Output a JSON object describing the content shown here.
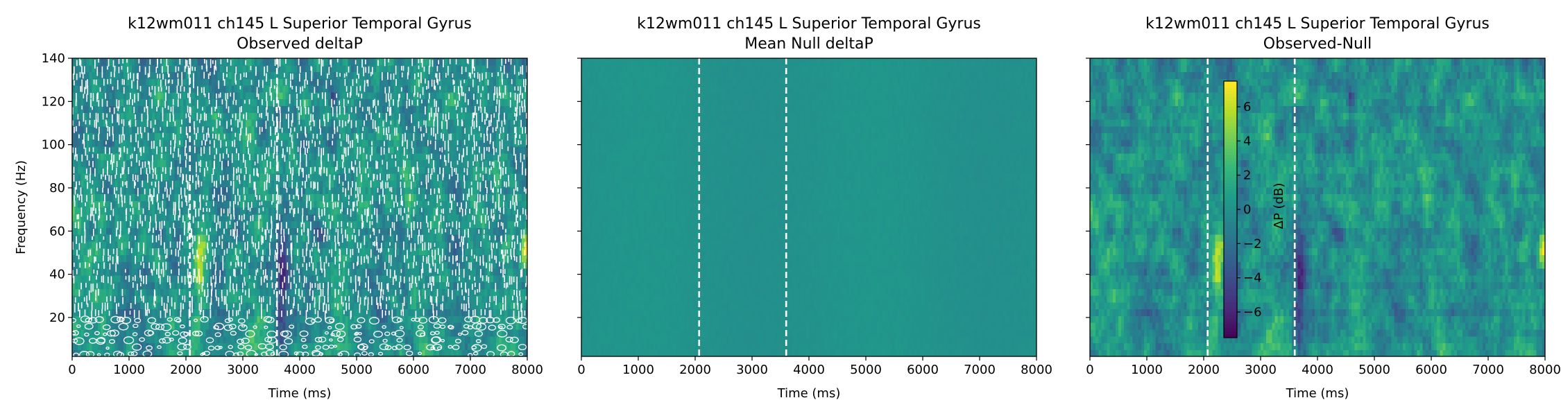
{
  "chart_data": [
    {
      "type": "heatmap",
      "title": "k12wm011 ch145 L Superior Temporal Gyrus",
      "subtitle": "Observed deltaP",
      "xlabel": "Time (ms)",
      "ylabel": "Frequency (Hz)",
      "xlim": [
        0,
        8000
      ],
      "ylim": [
        2,
        140
      ],
      "x_ticks": [
        "0",
        "1000",
        "2000",
        "3000",
        "4000",
        "5000",
        "6000",
        "7000",
        "8000"
      ],
      "y_ticks": [
        "20",
        "40",
        "60",
        "80",
        "100",
        "120",
        "140"
      ],
      "event_lines_ms": [
        2070,
        3600
      ],
      "significance_contours": true,
      "colormap": "viridis",
      "clim": [
        -7.5,
        7.5
      ]
    },
    {
      "type": "heatmap",
      "title": "k12wm011 ch145 L Superior Temporal Gyrus",
      "subtitle": "Mean Null deltaP",
      "xlabel": "Time (ms)",
      "ylabel": "",
      "xlim": [
        0,
        8000
      ],
      "ylim": [
        2,
        140
      ],
      "x_ticks": [
        "0",
        "1000",
        "2000",
        "3000",
        "4000",
        "5000",
        "6000",
        "7000",
        "8000"
      ],
      "y_ticks": [],
      "event_lines_ms": [
        2070,
        3600
      ],
      "colormap": "viridis",
      "clim": [
        -7.5,
        7.5
      ]
    },
    {
      "type": "heatmap",
      "title": "k12wm011 ch145 L Superior Temporal Gyrus",
      "subtitle": "Observed-Null",
      "xlabel": "Time (ms)",
      "ylabel": "",
      "xlim": [
        0,
        8000
      ],
      "ylim": [
        2,
        140
      ],
      "x_ticks": [
        "0",
        "1000",
        "2000",
        "3000",
        "4000",
        "5000",
        "6000",
        "7000",
        "8000"
      ],
      "y_ticks": [],
      "event_lines_ms": [
        2070,
        3600
      ],
      "colormap": "viridis",
      "clim": [
        -7.5,
        7.5
      ],
      "colorbar": {
        "label": "ΔP (dB)",
        "ticks": [
          "6",
          "4",
          "2",
          "0",
          "−2",
          "−4",
          "−6"
        ],
        "tick_values": [
          6,
          4,
          2,
          0,
          -2,
          -4,
          -6
        ],
        "range": [
          -7.5,
          7.5
        ]
      }
    }
  ]
}
